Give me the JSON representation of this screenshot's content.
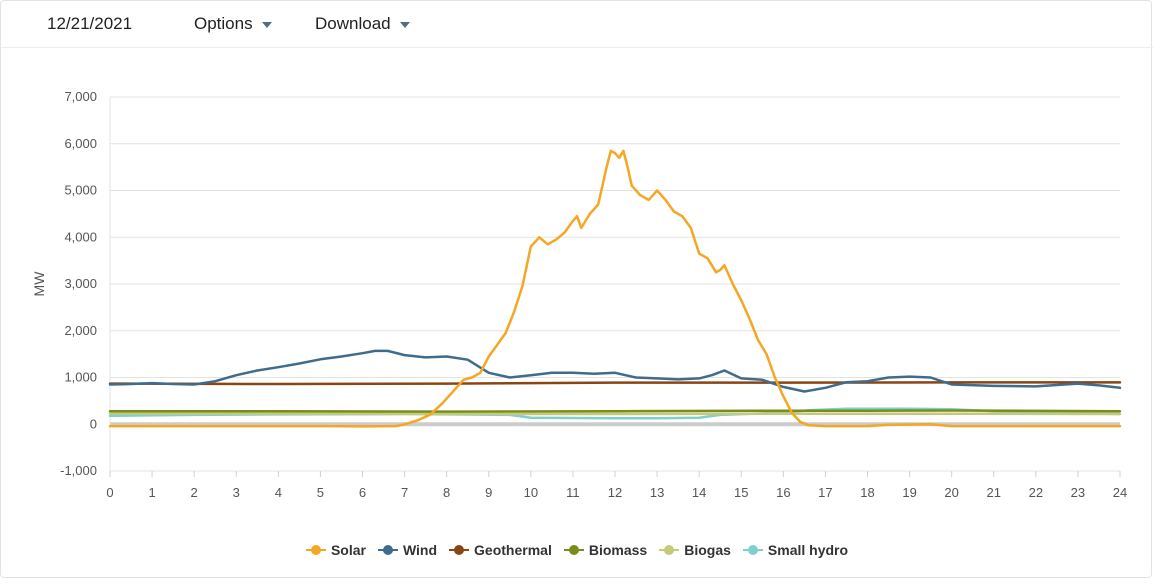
{
  "toolbar": {
    "date": "12/21/2021",
    "options_label": "Options",
    "download_label": "Download"
  },
  "chart_data": {
    "type": "line",
    "title": "",
    "xlabel": "",
    "ylabel": "MW",
    "xlim": [
      0,
      24
    ],
    "ylim": [
      -1000,
      7000
    ],
    "x_ticks": [
      0,
      1,
      2,
      3,
      4,
      5,
      6,
      7,
      8,
      9,
      10,
      11,
      12,
      13,
      14,
      15,
      16,
      17,
      18,
      19,
      20,
      21,
      22,
      23,
      24
    ],
    "y_ticks": [
      -1000,
      0,
      1000,
      2000,
      3000,
      4000,
      5000,
      6000,
      7000
    ],
    "y_tick_labels": [
      "-1,000",
      "0",
      "1,000",
      "2,000",
      "3,000",
      "4,000",
      "5,000",
      "6,000",
      "7,000"
    ],
    "grid": true,
    "legend_position": "bottom",
    "series": [
      {
        "name": "Solar",
        "color": "#f5a623",
        "points": [
          [
            0,
            -40
          ],
          [
            1,
            -40
          ],
          [
            2,
            -40
          ],
          [
            3,
            -40
          ],
          [
            4,
            -40
          ],
          [
            5,
            -40
          ],
          [
            6,
            -45
          ],
          [
            6.8,
            -40
          ],
          [
            7,
            0
          ],
          [
            7.3,
            80
          ],
          [
            7.6,
            200
          ],
          [
            7.9,
            450
          ],
          [
            8.2,
            750
          ],
          [
            8.4,
            950
          ],
          [
            8.6,
            1000
          ],
          [
            8.8,
            1100
          ],
          [
            9,
            1450
          ],
          [
            9.2,
            1700
          ],
          [
            9.4,
            1950
          ],
          [
            9.6,
            2400
          ],
          [
            9.8,
            2950
          ],
          [
            10,
            3800
          ],
          [
            10.2,
            4000
          ],
          [
            10.4,
            3850
          ],
          [
            10.6,
            3950
          ],
          [
            10.8,
            4100
          ],
          [
            11,
            4350
          ],
          [
            11.1,
            4450
          ],
          [
            11.2,
            4200
          ],
          [
            11.4,
            4500
          ],
          [
            11.6,
            4700
          ],
          [
            11.8,
            5500
          ],
          [
            11.9,
            5850
          ],
          [
            12,
            5800
          ],
          [
            12.1,
            5700
          ],
          [
            12.2,
            5850
          ],
          [
            12.3,
            5500
          ],
          [
            12.4,
            5100
          ],
          [
            12.6,
            4900
          ],
          [
            12.8,
            4800
          ],
          [
            13,
            5000
          ],
          [
            13.2,
            4800
          ],
          [
            13.4,
            4550
          ],
          [
            13.6,
            4450
          ],
          [
            13.8,
            4200
          ],
          [
            14,
            3650
          ],
          [
            14.2,
            3550
          ],
          [
            14.4,
            3250
          ],
          [
            14.5,
            3300
          ],
          [
            14.6,
            3400
          ],
          [
            14.8,
            3000
          ],
          [
            15,
            2650
          ],
          [
            15.2,
            2250
          ],
          [
            15.4,
            1800
          ],
          [
            15.6,
            1500
          ],
          [
            15.8,
            1000
          ],
          [
            16,
            600
          ],
          [
            16.2,
            250
          ],
          [
            16.4,
            50
          ],
          [
            16.6,
            -20
          ],
          [
            17,
            -40
          ],
          [
            18,
            -40
          ],
          [
            18.5,
            -10
          ],
          [
            19,
            -5
          ],
          [
            19.5,
            0
          ],
          [
            20,
            -40
          ],
          [
            21,
            -40
          ],
          [
            22,
            -40
          ],
          [
            23,
            -40
          ],
          [
            24,
            -40
          ]
        ]
      },
      {
        "name": "Wind",
        "color": "#3f6c8c",
        "points": [
          [
            0,
            850
          ],
          [
            0.5,
            860
          ],
          [
            1,
            880
          ],
          [
            1.5,
            860
          ],
          [
            2,
            850
          ],
          [
            2.5,
            920
          ],
          [
            3,
            1050
          ],
          [
            3.5,
            1150
          ],
          [
            4,
            1220
          ],
          [
            4.5,
            1300
          ],
          [
            5,
            1390
          ],
          [
            5.5,
            1450
          ],
          [
            6,
            1520
          ],
          [
            6.3,
            1570
          ],
          [
            6.6,
            1570
          ],
          [
            7,
            1480
          ],
          [
            7.5,
            1430
          ],
          [
            8,
            1450
          ],
          [
            8.5,
            1380
          ],
          [
            9,
            1100
          ],
          [
            9.5,
            1000
          ],
          [
            10,
            1050
          ],
          [
            10.5,
            1100
          ],
          [
            11,
            1100
          ],
          [
            11.5,
            1080
          ],
          [
            12,
            1100
          ],
          [
            12.5,
            1000
          ],
          [
            13,
            980
          ],
          [
            13.5,
            960
          ],
          [
            14,
            980
          ],
          [
            14.3,
            1050
          ],
          [
            14.6,
            1150
          ],
          [
            15,
            980
          ],
          [
            15.5,
            950
          ],
          [
            16,
            800
          ],
          [
            16.5,
            700
          ],
          [
            17,
            780
          ],
          [
            17.5,
            900
          ],
          [
            18,
            920
          ],
          [
            18.5,
            1000
          ],
          [
            19,
            1020
          ],
          [
            19.5,
            1000
          ],
          [
            20,
            850
          ],
          [
            21,
            820
          ],
          [
            22,
            810
          ],
          [
            23,
            870
          ],
          [
            23.5,
            830
          ],
          [
            24,
            780
          ]
        ]
      },
      {
        "name": "Geothermal",
        "color": "#8b4513",
        "points": [
          [
            0,
            870
          ],
          [
            4,
            860
          ],
          [
            8,
            870
          ],
          [
            10,
            880
          ],
          [
            12,
            890
          ],
          [
            16,
            890
          ],
          [
            20,
            895
          ],
          [
            24,
            895
          ]
        ]
      },
      {
        "name": "Biomass",
        "color": "#7a8c1a",
        "points": [
          [
            0,
            280
          ],
          [
            4,
            280
          ],
          [
            8,
            270
          ],
          [
            12,
            280
          ],
          [
            16,
            290
          ],
          [
            18,
            290
          ],
          [
            20,
            295
          ],
          [
            24,
            280
          ]
        ]
      },
      {
        "name": "Biogas",
        "color": "#c5c97a",
        "points": [
          [
            0,
            230
          ],
          [
            4,
            225
          ],
          [
            8,
            220
          ],
          [
            12,
            220
          ],
          [
            16,
            225
          ],
          [
            20,
            225
          ],
          [
            24,
            220
          ]
        ]
      },
      {
        "name": "Small hydro",
        "color": "#7fcfcf",
        "points": [
          [
            0,
            180
          ],
          [
            2,
            200
          ],
          [
            4,
            210
          ],
          [
            7,
            220
          ],
          [
            9.5,
            200
          ],
          [
            10,
            140
          ],
          [
            12,
            130
          ],
          [
            13,
            130
          ],
          [
            14,
            140
          ],
          [
            14.5,
            200
          ],
          [
            16,
            250
          ],
          [
            16.6,
            300
          ],
          [
            17.5,
            330
          ],
          [
            19,
            330
          ],
          [
            20,
            320
          ],
          [
            21,
            280
          ],
          [
            22,
            240
          ],
          [
            23,
            240
          ],
          [
            24,
            220
          ]
        ]
      }
    ]
  }
}
